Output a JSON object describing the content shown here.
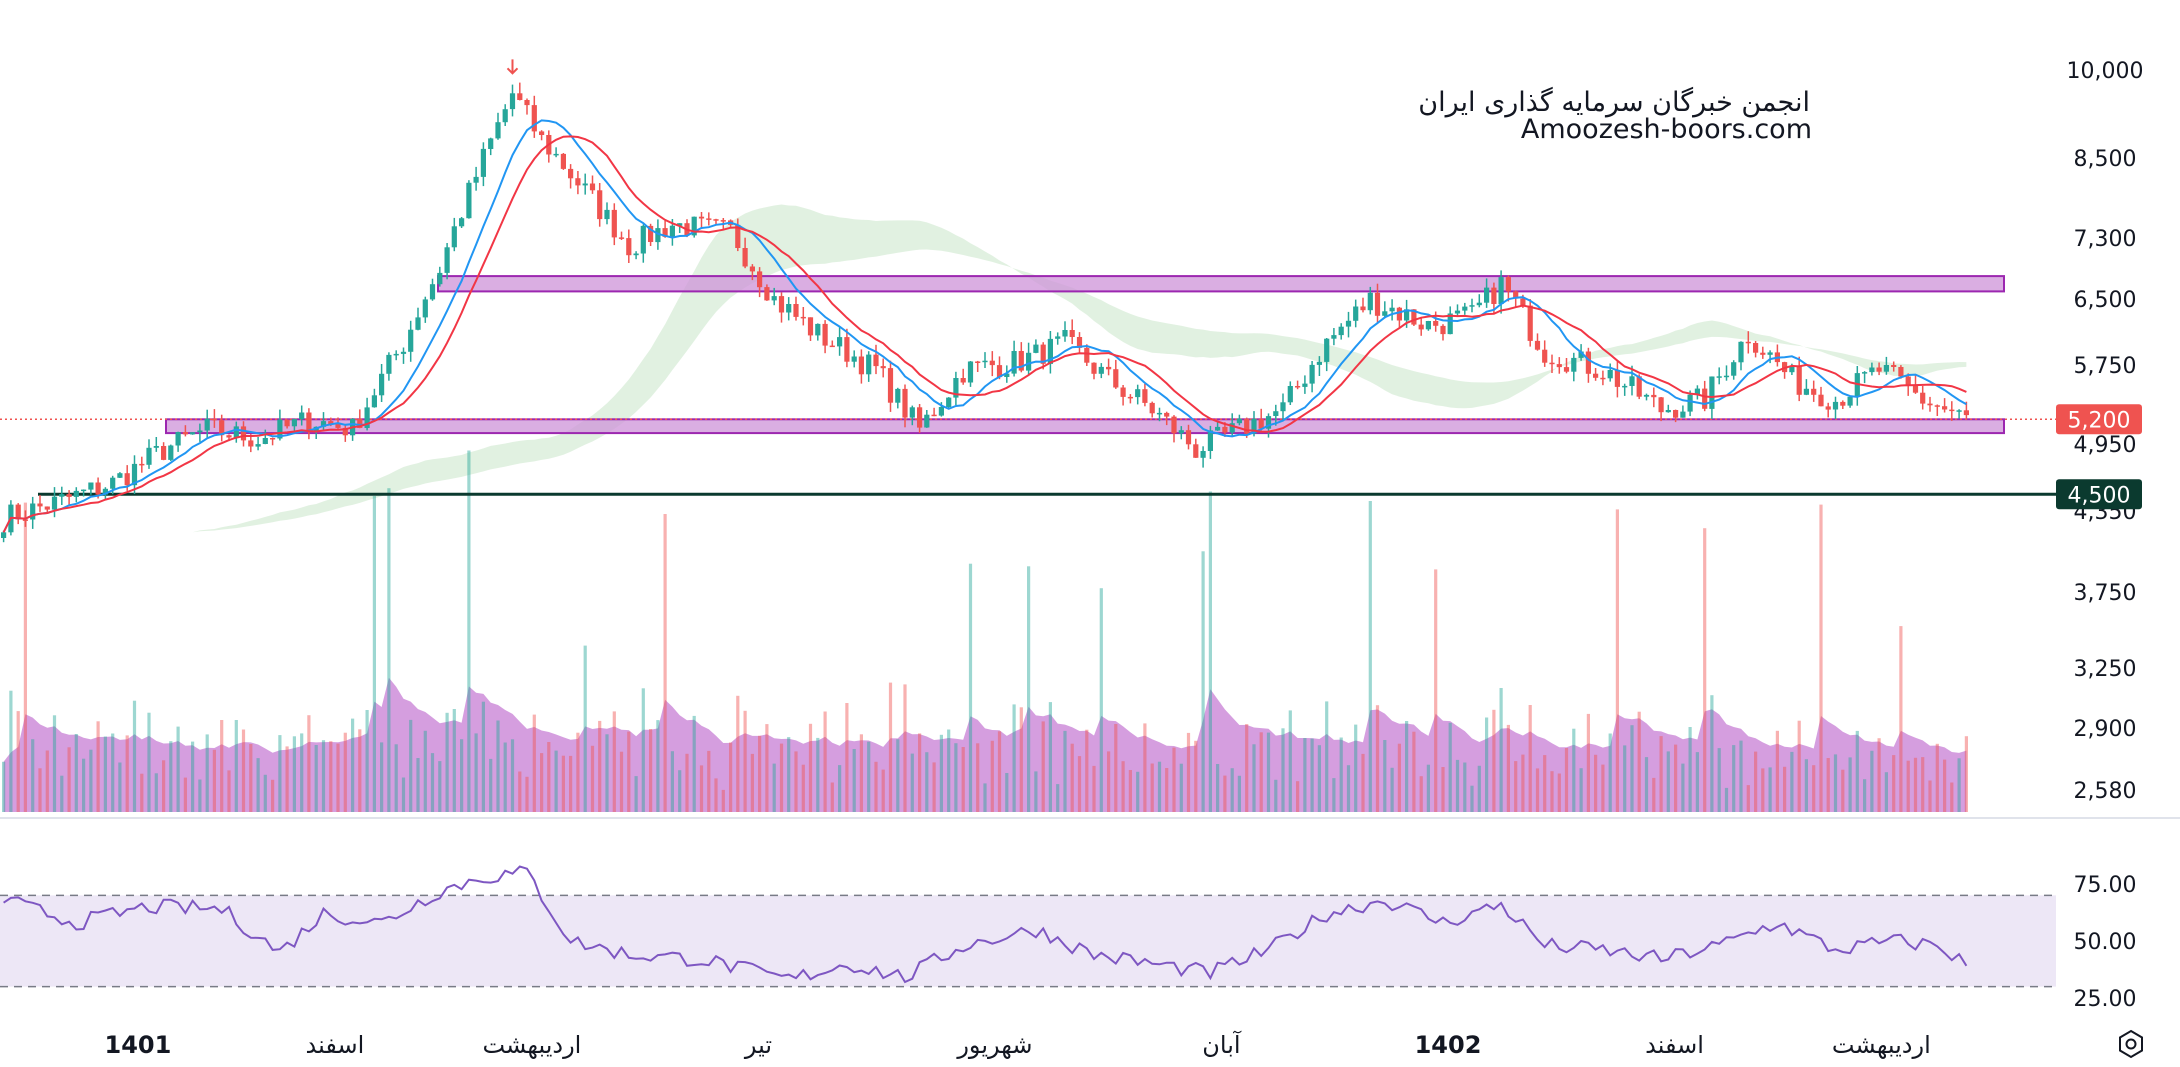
{
  "watermark": {
    "line1": "انجمن خبرگان سرمایه گذاری ایران",
    "line2": "Amoozesh-boors.com"
  },
  "colors": {
    "up": "#26a69a",
    "down": "#ef5350",
    "ma_fast": "#2196f3",
    "ma_slow": "#f23645",
    "zone_fill": "#ce93d8",
    "zone_stroke": "#9c27b0",
    "support_line": "#0b3a2f",
    "rsi": "#7e57c2",
    "rsi_band": "#ede7f6",
    "cloud_up": "#c8e6c9",
    "cloud_down": "#ffcdd2",
    "volume_ma_fill": "#c77dd4"
  },
  "chart_data": {
    "type": "candlestick",
    "price_axis": {
      "ticks": [
        "10,000",
        "8,500",
        "7,300",
        "6,500",
        "5,750",
        "4,950",
        "4,350",
        "3,750",
        "3,250",
        "2,900",
        "2,580"
      ],
      "tick_values": [
        10000,
        8500,
        7300,
        6500,
        5750,
        4950,
        4350,
        3750,
        3250,
        2900,
        2580
      ],
      "scale": "log",
      "ylim": [
        2500,
        10200
      ]
    },
    "rsi_axis": {
      "ticks": [
        "75.00",
        "50.00",
        "25.00"
      ],
      "tick_values": [
        75,
        50,
        25
      ],
      "band": [
        30,
        70
      ]
    },
    "time_axis": {
      "labels": [
        {
          "text": "1401",
          "bold": true,
          "index": 0.07
        },
        {
          "text": "اسفند",
          "bold": false,
          "index": 0.17
        },
        {
          "text": "اردیبهشت",
          "bold": false,
          "index": 0.27
        },
        {
          "text": "تیر",
          "bold": false,
          "index": 0.385
        },
        {
          "text": "شهریور",
          "bold": false,
          "index": 0.505
        },
        {
          "text": "آبان",
          "bold": false,
          "index": 0.62
        },
        {
          "text": "1402",
          "bold": true,
          "index": 0.735
        },
        {
          "text": "اسفند",
          "bold": false,
          "index": 0.85
        },
        {
          "text": "اردیبهشت",
          "bold": false,
          "index": 0.955
        }
      ]
    },
    "last_price": {
      "value": 5200,
      "label": "5,200"
    },
    "support": {
      "value": 4500,
      "label": "4,500"
    },
    "zones": [
      {
        "name": "resistance",
        "low": 6600,
        "high": 6800
      },
      {
        "name": "support",
        "low": 5060,
        "high": 5200
      }
    ],
    "anchors": [
      [
        0,
        4300
      ],
      [
        6,
        4400
      ],
      [
        15,
        4600
      ],
      [
        22,
        4900
      ],
      [
        28,
        5100
      ],
      [
        35,
        5000
      ],
      [
        42,
        5200
      ],
      [
        48,
        5100
      ],
      [
        55,
        6000
      ],
      [
        60,
        6900
      ],
      [
        66,
        8500
      ],
      [
        70,
        9600
      ],
      [
        74,
        8800
      ],
      [
        80,
        8000
      ],
      [
        86,
        7200
      ],
      [
        92,
        7500
      ],
      [
        100,
        7400
      ],
      [
        106,
        6500
      ],
      [
        112,
        6100
      ],
      [
        120,
        5700
      ],
      [
        126,
        5100
      ],
      [
        132,
        5700
      ],
      [
        140,
        5800
      ],
      [
        146,
        6000
      ],
      [
        152,
        5600
      ],
      [
        158,
        5300
      ],
      [
        164,
        4900
      ],
      [
        170,
        5100
      ],
      [
        176,
        5300
      ],
      [
        182,
        6000
      ],
      [
        188,
        6500
      ],
      [
        196,
        6200
      ],
      [
        202,
        6300
      ],
      [
        206,
        6700
      ],
      [
        212,
        5900
      ],
      [
        220,
        5700
      ],
      [
        228,
        5300
      ],
      [
        234,
        5400
      ],
      [
        240,
        6100
      ],
      [
        246,
        5600
      ],
      [
        252,
        5400
      ],
      [
        258,
        5700
      ],
      [
        264,
        5400
      ],
      [
        270,
        5200
      ]
    ],
    "candle_count": 271,
    "volume": {
      "ma_peak_region": "اردیبهشت"
    },
    "rsi_anchors": [
      [
        0,
        68
      ],
      [
        10,
        58
      ],
      [
        20,
        65
      ],
      [
        30,
        64
      ],
      [
        38,
        45
      ],
      [
        44,
        62
      ],
      [
        52,
        58
      ],
      [
        60,
        72
      ],
      [
        66,
        78
      ],
      [
        72,
        80
      ],
      [
        78,
        50
      ],
      [
        86,
        44
      ],
      [
        96,
        42
      ],
      [
        108,
        33
      ],
      [
        116,
        40
      ],
      [
        124,
        34
      ],
      [
        132,
        48
      ],
      [
        142,
        55
      ],
      [
        150,
        44
      ],
      [
        158,
        40
      ],
      [
        166,
        36
      ],
      [
        174,
        46
      ],
      [
        182,
        62
      ],
      [
        190,
        68
      ],
      [
        198,
        58
      ],
      [
        206,
        66
      ],
      [
        212,
        48
      ],
      [
        220,
        46
      ],
      [
        228,
        42
      ],
      [
        236,
        48
      ],
      [
        244,
        58
      ],
      [
        252,
        46
      ],
      [
        260,
        50
      ],
      [
        266,
        48
      ],
      [
        270,
        40
      ]
    ]
  }
}
